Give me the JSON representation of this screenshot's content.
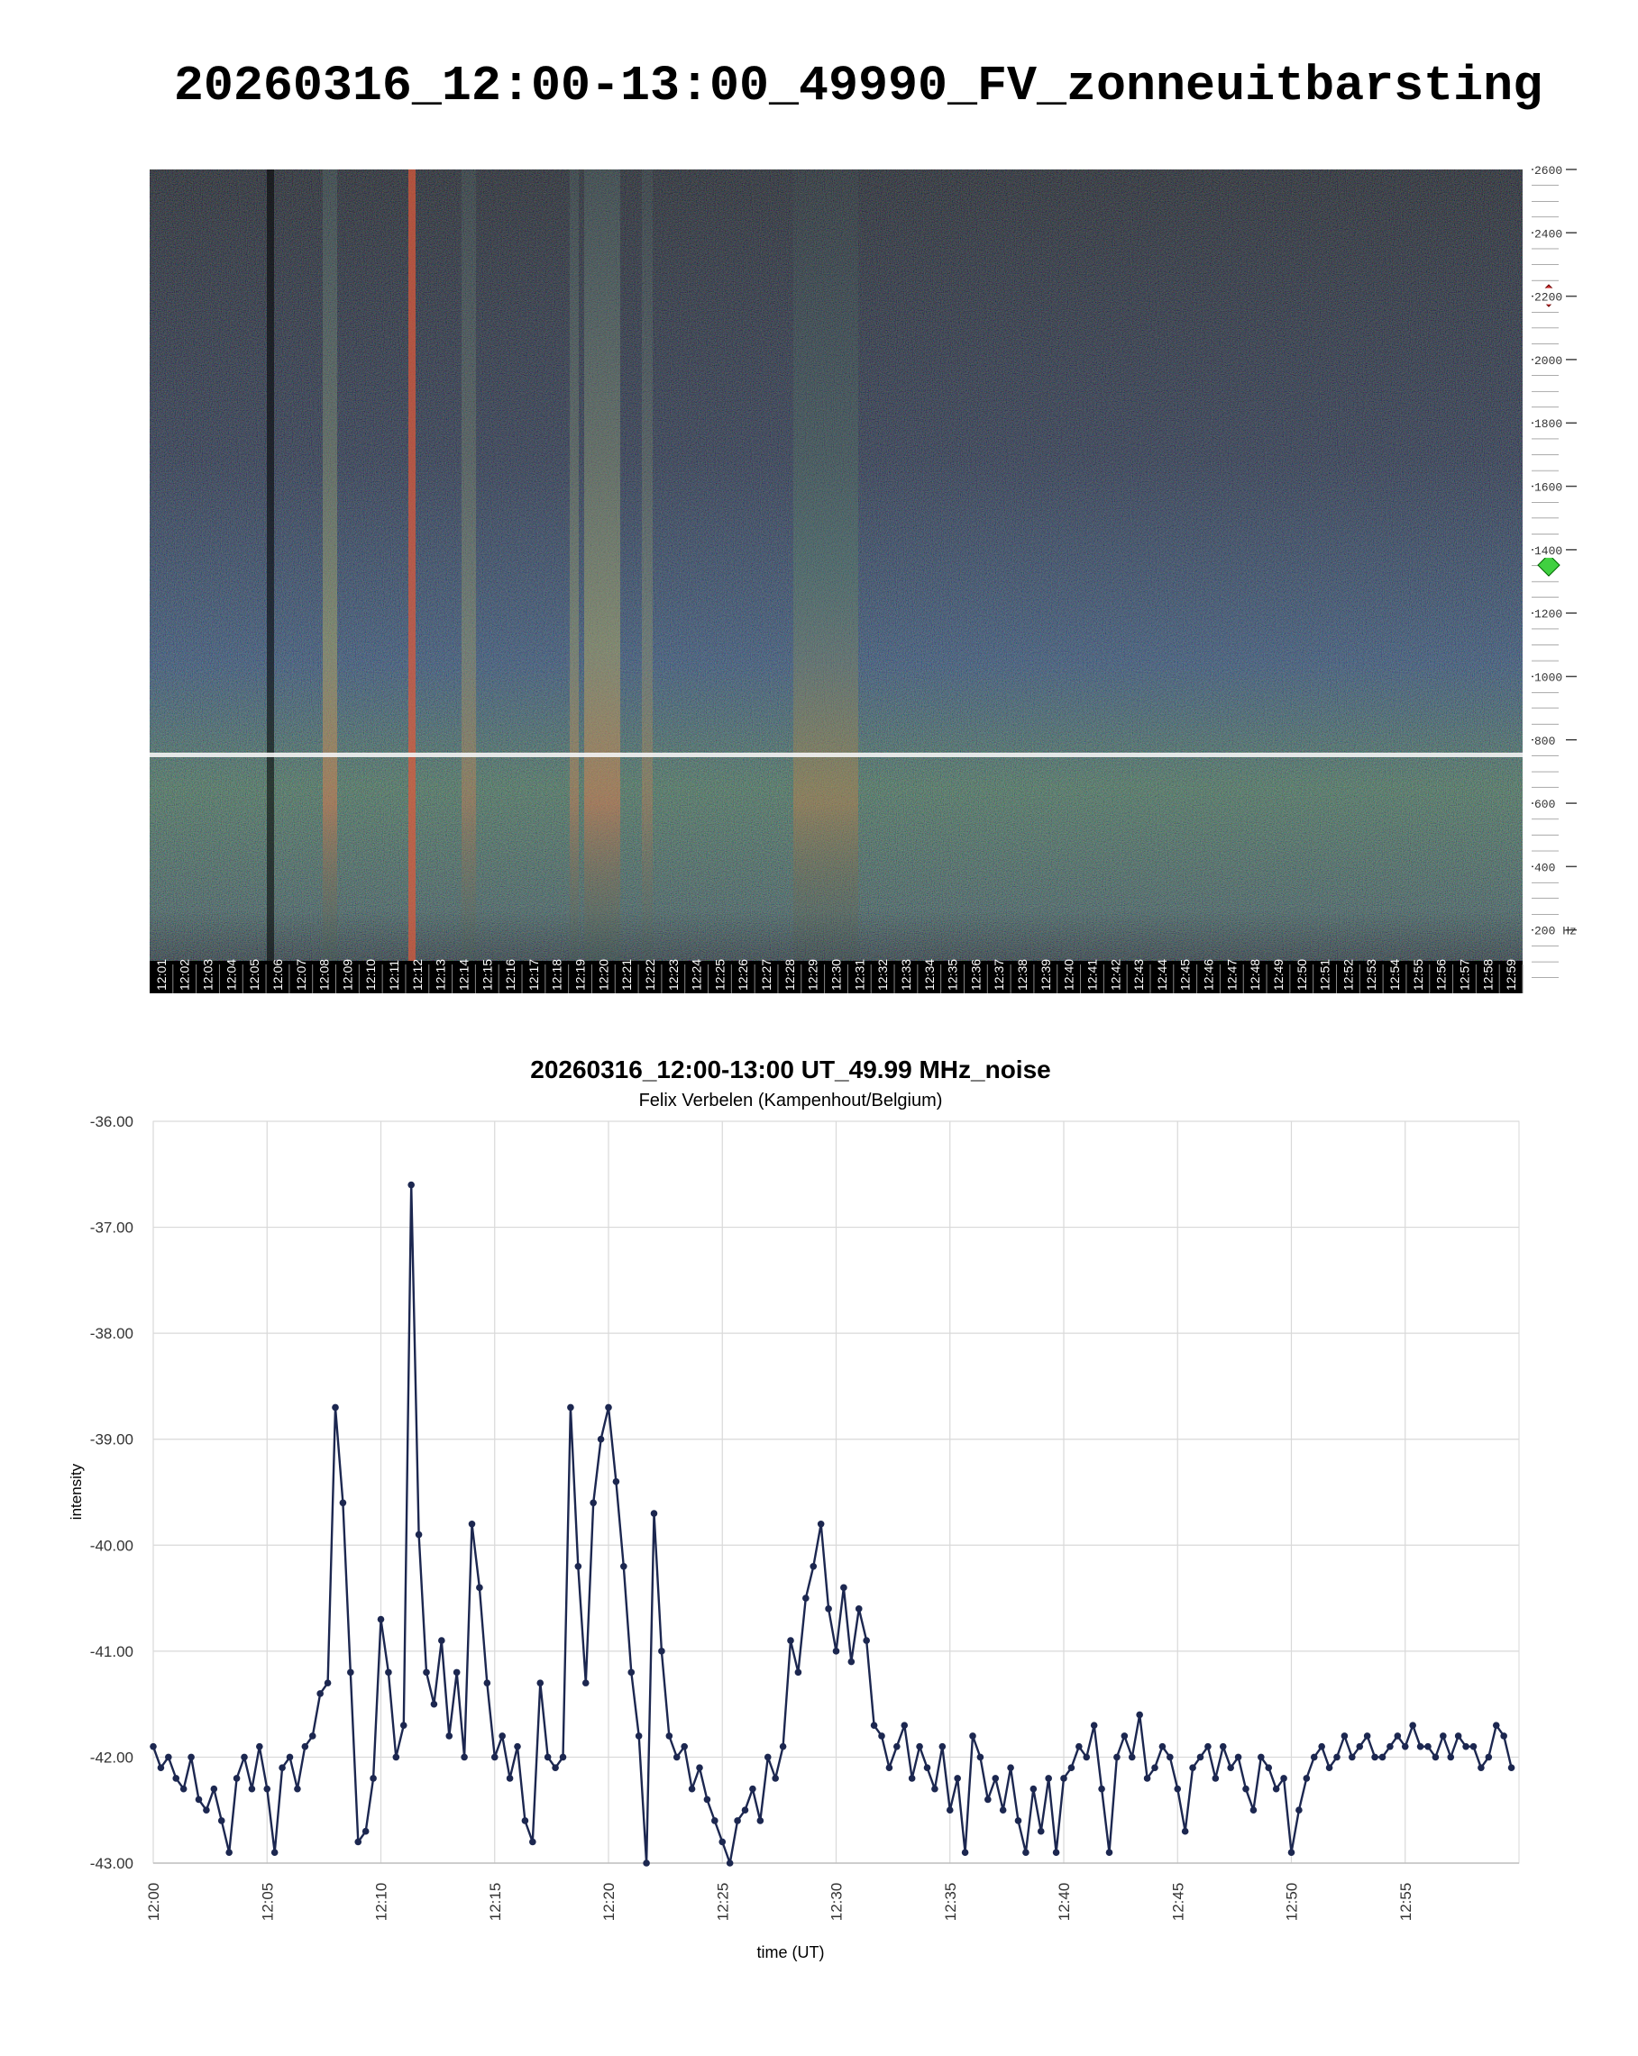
{
  "chart_data": [
    {
      "type": "spectrogram",
      "title": "20260316_12:00-13:00_49990_FV_zonneuitbarsting",
      "categories": [
        "12:01",
        "12:02",
        "12:03",
        "12:04",
        "12:05",
        "12:06",
        "12:07",
        "12:08",
        "12:09",
        "12:10",
        "12:11",
        "12:12",
        "12:13",
        "12:14",
        "12:15",
        "12:16",
        "12:17",
        "12:18",
        "12:19",
        "12:20",
        "12:21",
        "12:22",
        "12:23",
        "12:24",
        "12:25",
        "12:26",
        "12:27",
        "12:28",
        "12:29",
        "12:30",
        "12:31",
        "12:32",
        "12:33",
        "12:34",
        "12:35",
        "12:36",
        "12:37",
        "12:38",
        "12:39",
        "12:40",
        "12:41",
        "12:42",
        "12:43",
        "12:44",
        "12:45",
        "12:46",
        "12:47",
        "12:48",
        "12:49",
        "12:50",
        "12:51",
        "12:52",
        "12:53",
        "12:54",
        "12:55",
        "12:56",
        "12:57",
        "12:58",
        "12:59"
      ],
      "ylim": [
        0,
        2600
      ],
      "yticks": [
        {
          "value": 200,
          "label": "200 Hz"
        },
        400,
        600,
        800,
        1000,
        1200,
        1400,
        1600,
        1800,
        2000,
        2200,
        2400,
        2600
      ]
    },
    {
      "type": "line",
      "title": "20260316_12:00-13:00 UT_49.99 MHz_noise",
      "subtitle": "Felix Verbelen (Kampenhout/Belgium)",
      "xlabel": "time (UT)",
      "ylabel": "intensity",
      "color": "#1c2750",
      "grid": true,
      "xlim": [
        "12:00",
        "13:00"
      ],
      "xticks": [
        "12:00",
        "12:05",
        "12:10",
        "12:15",
        "12:20",
        "12:25",
        "12:30",
        "12:35",
        "12:40",
        "12:45",
        "12:50",
        "12:55"
      ],
      "ylim": [
        -43,
        -36
      ],
      "yticks": [
        {
          "value": -43,
          "label": "-43.00"
        },
        {
          "value": -42,
          "label": "-42.00"
        },
        {
          "value": -41,
          "label": "-41.00"
        },
        {
          "value": -40,
          "label": "-40.00"
        },
        {
          "value": -39,
          "label": "-39.00"
        },
        {
          "value": -38,
          "label": "-38.00"
        },
        {
          "value": -37,
          "label": "-37.00"
        },
        {
          "value": -36,
          "label": "-36.00"
        }
      ],
      "x": [
        "12:00:00",
        "12:00:20",
        "12:00:40",
        "12:01:00",
        "12:01:20",
        "12:01:40",
        "12:02:00",
        "12:02:20",
        "12:02:40",
        "12:03:00",
        "12:03:20",
        "12:03:40",
        "12:04:00",
        "12:04:20",
        "12:04:40",
        "12:05:00",
        "12:05:20",
        "12:05:40",
        "12:06:00",
        "12:06:20",
        "12:06:40",
        "12:07:00",
        "12:07:20",
        "12:07:40",
        "12:08:00",
        "12:08:20",
        "12:08:40",
        "12:09:00",
        "12:09:20",
        "12:09:40",
        "12:10:00",
        "12:10:20",
        "12:10:40",
        "12:11:00",
        "12:11:20",
        "12:11:40",
        "12:12:00",
        "12:12:20",
        "12:12:40",
        "12:13:00",
        "12:13:20",
        "12:13:40",
        "12:14:00",
        "12:14:20",
        "12:14:40",
        "12:15:00",
        "12:15:20",
        "12:15:40",
        "12:16:00",
        "12:16:20",
        "12:16:40",
        "12:17:00",
        "12:17:20",
        "12:17:40",
        "12:18:00",
        "12:18:20",
        "12:18:40",
        "12:19:00",
        "12:19:20",
        "12:19:40",
        "12:20:00",
        "12:20:20",
        "12:20:40",
        "12:21:00",
        "12:21:20",
        "12:21:40",
        "12:22:00",
        "12:22:20",
        "12:22:40",
        "12:23:00",
        "12:23:20",
        "12:23:40",
        "12:24:00",
        "12:24:20",
        "12:24:40",
        "12:25:00",
        "12:25:20",
        "12:25:40",
        "12:26:00",
        "12:26:20",
        "12:26:40",
        "12:27:00",
        "12:27:20",
        "12:27:40",
        "12:28:00",
        "12:28:20",
        "12:28:40",
        "12:29:00",
        "12:29:20",
        "12:29:40",
        "12:30:00",
        "12:30:20",
        "12:30:40",
        "12:31:00",
        "12:31:20",
        "12:31:40",
        "12:32:00",
        "12:32:20",
        "12:32:40",
        "12:33:00",
        "12:33:20",
        "12:33:40",
        "12:34:00",
        "12:34:20",
        "12:34:40",
        "12:35:00",
        "12:35:20",
        "12:35:40",
        "12:36:00",
        "12:36:20",
        "12:36:40",
        "12:37:00",
        "12:37:20",
        "12:37:40",
        "12:38:00",
        "12:38:20",
        "12:38:40",
        "12:39:00",
        "12:39:20",
        "12:39:40",
        "12:40:00",
        "12:40:20",
        "12:40:40",
        "12:41:00",
        "12:41:20",
        "12:41:40",
        "12:42:00",
        "12:42:20",
        "12:42:40",
        "12:43:00",
        "12:43:20",
        "12:43:40",
        "12:44:00",
        "12:44:20",
        "12:44:40",
        "12:45:00",
        "12:45:20",
        "12:45:40",
        "12:46:00",
        "12:46:20",
        "12:46:40",
        "12:47:00",
        "12:47:20",
        "12:47:40",
        "12:48:00",
        "12:48:20",
        "12:48:40",
        "12:49:00",
        "12:49:20",
        "12:49:40",
        "12:50:00",
        "12:50:20",
        "12:50:40",
        "12:51:00",
        "12:51:20",
        "12:51:40",
        "12:52:00",
        "12:52:20",
        "12:52:40",
        "12:53:00",
        "12:53:20",
        "12:53:40",
        "12:54:00",
        "12:54:20",
        "12:54:40",
        "12:55:00",
        "12:55:20",
        "12:55:40",
        "12:56:00",
        "12:56:20",
        "12:56:40",
        "12:57:00",
        "12:57:20",
        "12:57:40",
        "12:58:00",
        "12:58:20",
        "12:58:40",
        "12:59:00",
        "12:59:20",
        "12:59:40"
      ],
      "values": [
        -41.9,
        -42.1,
        -42.0,
        -42.2,
        -42.3,
        -42.0,
        -42.4,
        -42.5,
        -42.3,
        -42.6,
        -42.9,
        -42.2,
        -42.0,
        -42.3,
        -41.9,
        -42.3,
        -42.9,
        -42.1,
        -42.0,
        -42.3,
        -41.9,
        -41.8,
        -41.4,
        -41.3,
        -38.7,
        -39.6,
        -41.2,
        -42.8,
        -42.7,
        -42.2,
        -40.7,
        -41.2,
        -42.0,
        -41.7,
        -36.6,
        -39.9,
        -41.2,
        -41.5,
        -40.9,
        -41.8,
        -41.2,
        -42.0,
        -39.8,
        -40.4,
        -41.3,
        -42.0,
        -41.8,
        -42.2,
        -41.9,
        -42.6,
        -42.8,
        -41.3,
        -42.0,
        -42.1,
        -42.0,
        -38.7,
        -40.2,
        -41.3,
        -39.6,
        -39.0,
        -38.7,
        -39.4,
        -40.2,
        -41.2,
        -41.8,
        -43.0,
        -39.7,
        -41.0,
        -41.8,
        -42.0,
        -41.9,
        -42.3,
        -42.1,
        -42.4,
        -42.6,
        -42.8,
        -43.0,
        -42.6,
        -42.5,
        -42.3,
        -42.6,
        -42.0,
        -42.2,
        -41.9,
        -40.9,
        -41.2,
        -40.5,
        -40.2,
        -39.8,
        -40.6,
        -41.0,
        -40.4,
        -41.1,
        -40.6,
        -40.9,
        -41.7,
        -41.8,
        -42.1,
        -41.9,
        -41.7,
        -42.2,
        -41.9,
        -42.1,
        -42.3,
        -41.9,
        -42.5,
        -42.2,
        -42.9,
        -41.8,
        -42.0,
        -42.4,
        -42.2,
        -42.5,
        -42.1,
        -42.6,
        -42.9,
        -42.3,
        -42.7,
        -42.2,
        -42.9,
        -42.2,
        -42.1,
        -41.9,
        -42.0,
        -41.7,
        -42.3,
        -42.9,
        -42.0,
        -41.8,
        -42.0,
        -41.6,
        -42.2,
        -42.1,
        -41.9,
        -42.0,
        -42.3,
        -42.7,
        -42.1,
        -42.0,
        -41.9,
        -42.2,
        -41.9,
        -42.1,
        -42.0,
        -42.3,
        -42.5,
        -42.0,
        -42.1,
        -42.3,
        -42.2,
        -42.9,
        -42.5,
        -42.2,
        -42.0,
        -41.9,
        -42.1,
        -42.0,
        -41.8,
        -42.0,
        -41.9,
        -41.8,
        -42.0,
        -42.0,
        -41.9,
        -41.8,
        -41.9,
        -41.7,
        -41.9,
        -41.9,
        -42.0,
        -41.8,
        -42.0,
        -41.8,
        -41.9,
        -41.9,
        -42.1,
        -42.0,
        -41.7,
        -41.8,
        -42.1
      ]
    }
  ]
}
